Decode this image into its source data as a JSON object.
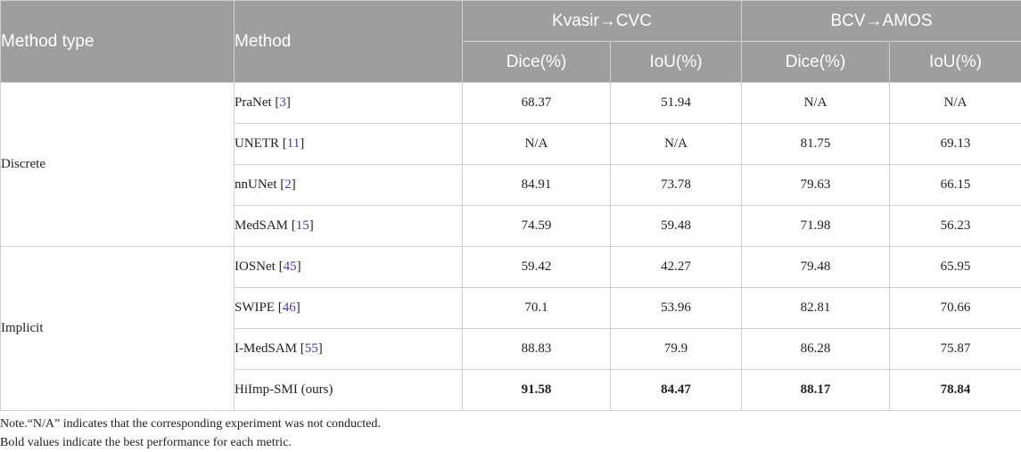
{
  "header": {
    "method_type": "Method type",
    "method": "Method",
    "group1": "Kvasir→CVC",
    "group2": "BCV→AMOS",
    "dice": "Dice(%)",
    "iou": "IoU(%)"
  },
  "groups": [
    {
      "label": "Discrete",
      "rows": [
        {
          "name": "PraNet",
          "ref": "3",
          "values": [
            "68.37",
            "51.94",
            "N/A",
            "N/A"
          ]
        },
        {
          "name": "UNETR",
          "ref": "11",
          "values": [
            "N/A",
            "N/A",
            "81.75",
            "69.13"
          ]
        },
        {
          "name": "nnUNet",
          "ref": "2",
          "values": [
            "84.91",
            "73.78",
            "79.63",
            "66.15"
          ]
        },
        {
          "name": "MedSAM",
          "ref": "15",
          "values": [
            "74.59",
            "59.48",
            "71.98",
            "56.23"
          ]
        }
      ]
    },
    {
      "label": "Implicit",
      "rows": [
        {
          "name": "IOSNet",
          "ref": "45",
          "values": [
            "59.42",
            "42.27",
            "79.48",
            "65.95"
          ]
        },
        {
          "name": "SWIPE",
          "ref": "46",
          "values": [
            "70.1",
            "53.96",
            "82.81",
            "70.66"
          ]
        },
        {
          "name": "I-MedSAM",
          "ref": "55",
          "values": [
            "88.83",
            "79.9",
            "86.28",
            "75.87"
          ]
        },
        {
          "name": "HiImp-SMI (ours)",
          "ref": "",
          "values": [
            "91.58",
            "84.47",
            "88.17",
            "78.84"
          ],
          "bold": true
        }
      ]
    }
  ],
  "notes": [
    "Note.“N/A” indicates that the corresponding experiment was not conducted.",
    "Bold values indicate the best performance for each metric."
  ]
}
